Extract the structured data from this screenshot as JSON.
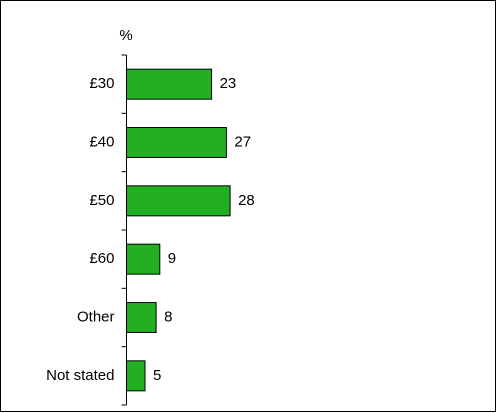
{
  "chart_data": {
    "type": "barh",
    "axis_label": "%",
    "categories": [
      "£30",
      "£40",
      "£50",
      "£60",
      "Other",
      "Not stated"
    ],
    "values": [
      23,
      27,
      28,
      9,
      8,
      5
    ],
    "color": "#22b022"
  }
}
